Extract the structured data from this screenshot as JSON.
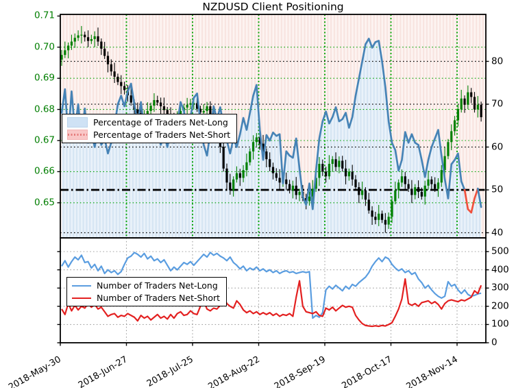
{
  "title": "NZDUSD Client Positioning",
  "legend_top": {
    "items": [
      {
        "label": "Percentage of Traders Net-Long",
        "swatch": "area-blue"
      },
      {
        "label": "Percentage of Traders Net-Short",
        "swatch": "area-red"
      }
    ]
  },
  "legend_bottom": {
    "items": [
      {
        "label": "Number of Traders Net-Long",
        "swatch": "line-blue"
      },
      {
        "label": "Number of Traders Net-Short",
        "swatch": "line-red"
      }
    ]
  },
  "chart_data": [
    {
      "type": "candlestick+line",
      "panel": "top",
      "title": "NZDUSD Client Positioning",
      "x_tick_labels": [
        "2018-May-30",
        "2018-Jun-27",
        "2018-Jul-25",
        "2018-Aug-22",
        "2018-Sep-19",
        "2018-Oct-17",
        "2018-Nov-14"
      ],
      "left_axis": {
        "name": "price",
        "ticks": [
          "0.65",
          "0.66",
          "0.67",
          "0.68",
          "0.69",
          "0.70",
          "0.71"
        ],
        "label_color": "#007e00",
        "range": [
          0.6388,
          0.7104
        ]
      },
      "right_axis": {
        "name": "percent",
        "ticks": [
          "40",
          "50",
          "60",
          "70",
          "80"
        ],
        "range": [
          38.8,
          90.9
        ]
      },
      "reference_lines": {
        "dashdot_level": 50,
        "dotted_levels": [
          40,
          60,
          70,
          80
        ],
        "color": "#000000"
      },
      "grid": {
        "h_color": "#00a400",
        "v_color": "#00a400",
        "style": "dotted"
      },
      "candles": {
        "name": "NZDUSD daily price",
        "up_color": "#008000",
        "down_color": "#000000",
        "open_rule": "previous-close",
        "first_open": 0.696,
        "wick_high_cycle": [
          0.0016,
          0.0028,
          0.001,
          0.0022,
          0.0014
        ],
        "wick_low_cycle": [
          0.002,
          0.001,
          0.0026,
          0.0014
        ],
        "closes": [
          0.6975,
          0.699,
          0.7005,
          0.7018,
          0.703,
          0.7038,
          0.704,
          0.7032,
          0.702,
          0.7026,
          0.7035,
          0.7018,
          0.6995,
          0.6972,
          0.6945,
          0.6922,
          0.6905,
          0.6888,
          0.6875,
          0.6862,
          0.6845,
          0.6822,
          0.68,
          0.6788,
          0.6775,
          0.6782,
          0.6795,
          0.6812,
          0.683,
          0.6822,
          0.681,
          0.6798,
          0.6785,
          0.6775,
          0.6765,
          0.6778,
          0.6795,
          0.6806,
          0.6815,
          0.682,
          0.682,
          0.6802,
          0.679,
          0.6795,
          0.681,
          0.6785,
          0.676,
          0.672,
          0.668,
          0.661,
          0.6565,
          0.654,
          0.6575,
          0.6595,
          0.658,
          0.6605,
          0.663,
          0.6665,
          0.6695,
          0.671,
          0.669,
          0.6665,
          0.664,
          0.6615,
          0.6595,
          0.658,
          0.6565,
          0.6575,
          0.656,
          0.654,
          0.6555,
          0.6525,
          0.6535,
          0.6515,
          0.6505,
          0.652,
          0.6545,
          0.658,
          0.6625,
          0.66,
          0.6585,
          0.6625,
          0.664,
          0.6615,
          0.6635,
          0.661,
          0.6585,
          0.66,
          0.6575,
          0.655,
          0.6525,
          0.654,
          0.651,
          0.6475,
          0.6455,
          0.6445,
          0.6465,
          0.6445,
          0.643,
          0.6455,
          0.6505,
          0.654,
          0.6565,
          0.6585,
          0.656,
          0.6545,
          0.6525,
          0.655,
          0.6535,
          0.652,
          0.6555,
          0.6575,
          0.656,
          0.6545,
          0.6565,
          0.6605,
          0.665,
          0.6695,
          0.673,
          0.6765,
          0.68,
          0.6835,
          0.6815,
          0.6855,
          0.684,
          0.68,
          0.6815,
          0.6775
        ]
      },
      "pct_long": {
        "name": "Percentage of Traders Net-Long",
        "line_color": "#4683b6",
        "below50_recent_color": "#f0503c",
        "red_segment": [
          122,
          126
        ],
        "fill_base": "#eaf2fa",
        "fill_stripe": "#d6e5f3",
        "values": [
          68,
          73.5,
          62.5,
          73,
          64,
          70,
          62,
          69,
          61,
          63.5,
          60,
          64.5,
          60.5,
          62,
          58.5,
          61,
          65,
          70,
          72,
          69.5,
          73,
          74.8,
          70,
          65.5,
          70.5,
          64,
          67.5,
          63,
          61.5,
          65,
          60.5,
          63.5,
          60,
          64,
          61,
          65.5,
          70.5,
          68.5,
          63.5,
          67,
          71.5,
          72.5,
          66,
          60.5,
          58,
          63.5,
          69.5,
          66.5,
          69.3,
          65,
          61.5,
          58.5,
          62,
          60,
          63,
          66.8,
          64,
          68,
          72,
          74.5,
          64,
          57,
          62.8,
          61.5,
          63.4,
          62.6,
          63,
          51.5,
          59,
          58,
          57.5,
          62,
          55,
          48.5,
          46.5,
          51.5,
          45.5,
          54.5,
          62,
          66,
          68.3,
          65.5,
          67,
          69.3,
          66,
          66.5,
          68,
          64.5,
          67,
          72,
          76,
          80,
          84,
          85.3,
          83.2,
          84.5,
          84.8,
          80,
          74,
          66,
          61,
          59.3,
          54.5,
          57,
          63.5,
          61,
          63,
          61,
          60.5,
          57,
          53,
          57,
          60,
          62,
          64,
          58,
          52.5,
          48,
          56,
          57,
          58.5,
          52,
          50,
          45.5,
          44.7,
          48,
          50.3,
          46
        ]
      },
      "pct_short_background": {
        "name": "Percentage of Traders Net-Short",
        "fill_base": "#fdf4f2",
        "fill_stripe": "#f8e4e0"
      }
    },
    {
      "type": "line",
      "panel": "bottom",
      "right_axis": {
        "name": "traders",
        "ticks": [
          "0",
          "100",
          "200",
          "300",
          "400",
          "500"
        ],
        "range": [
          0,
          575
        ]
      },
      "grid": {
        "color": "#a0a0a0",
        "style": "dotted"
      },
      "series": [
        {
          "name": "Number of Traders Net-Long",
          "color": "#5a9de0",
          "values": [
            420,
            450,
            415,
            445,
            470,
            455,
            480,
            440,
            445,
            410,
            430,
            395,
            420,
            380,
            400,
            385,
            395,
            375,
            390,
            430,
            465,
            475,
            495,
            485,
            470,
            490,
            460,
            475,
            450,
            460,
            440,
            455,
            425,
            395,
            415,
            400,
            420,
            440,
            430,
            445,
            425,
            445,
            465,
            485,
            470,
            495,
            480,
            490,
            475,
            465,
            450,
            470,
            440,
            425,
            405,
            420,
            395,
            410,
            400,
            415,
            395,
            405,
            390,
            400,
            385,
            395,
            380,
            390,
            395,
            385,
            390,
            380,
            385,
            390,
            385,
            390,
            135,
            150,
            140,
            165,
            290,
            310,
            295,
            315,
            300,
            285,
            310,
            295,
            320,
            310,
            330,
            345,
            360,
            385,
            420,
            445,
            465,
            445,
            470,
            460,
            430,
            410,
            395,
            405,
            385,
            395,
            375,
            385,
            350,
            330,
            300,
            315,
            290,
            270,
            255,
            245,
            255,
            335,
            310,
            320,
            290,
            270,
            290,
            265,
            255,
            260,
            268,
            272
          ]
        },
        {
          "name": "Number of Traders Net-Short",
          "color": "#e32020",
          "values": [
            185,
            155,
            215,
            175,
            205,
            180,
            200,
            190,
            215,
            195,
            210,
            185,
            195,
            170,
            145,
            155,
            160,
            140,
            150,
            145,
            160,
            150,
            140,
            120,
            150,
            135,
            145,
            125,
            140,
            155,
            135,
            145,
            130,
            155,
            135,
            160,
            170,
            150,
            155,
            175,
            160,
            155,
            200,
            230,
            185,
            175,
            190,
            185,
            205,
            255,
            215,
            200,
            190,
            230,
            210,
            180,
            165,
            175,
            160,
            170,
            155,
            165,
            155,
            165,
            150,
            160,
            145,
            155,
            150,
            160,
            145,
            250,
            340,
            200,
            170,
            165,
            160,
            170,
            150,
            145,
            190,
            180,
            195,
            175,
            190,
            205,
            195,
            200,
            195,
            150,
            125,
            105,
            95,
            92,
            90,
            93,
            90,
            95,
            92,
            100,
            110,
            145,
            185,
            240,
            350,
            215,
            205,
            215,
            200,
            220,
            225,
            230,
            215,
            225,
            210,
            185,
            215,
            230,
            235,
            230,
            225,
            235,
            230,
            240,
            250,
            285,
            270,
            315
          ]
        }
      ]
    }
  ]
}
